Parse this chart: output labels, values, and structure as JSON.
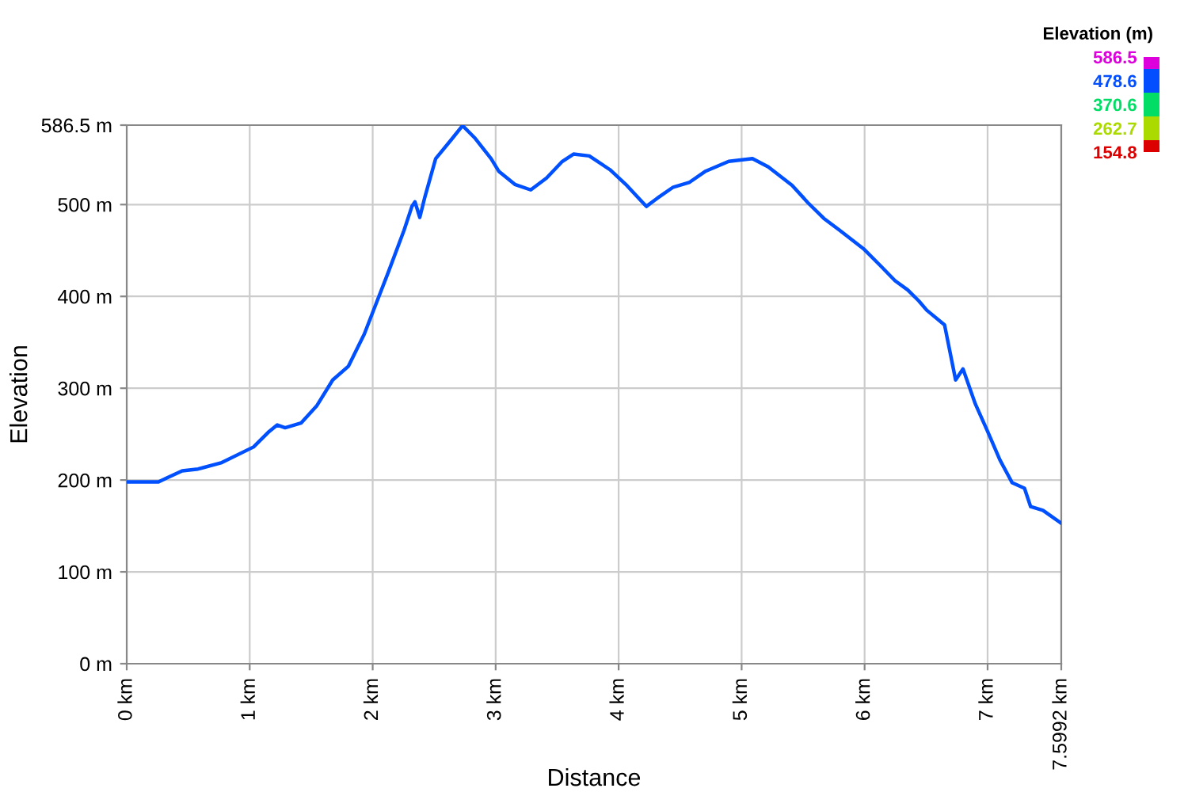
{
  "chart_data": {
    "type": "line",
    "xlabel": "Distance",
    "ylabel": "Elevation",
    "x": [
      0,
      0.258,
      0.322,
      0.451,
      0.58,
      0.773,
      1.031,
      1.159,
      1.224,
      1.288,
      1.417,
      1.546,
      1.675,
      1.803,
      1.932,
      2.01,
      2.126,
      2.255,
      2.319,
      2.344,
      2.383,
      2.422,
      2.512,
      2.641,
      2.731,
      2.834,
      2.963,
      3.027,
      3.156,
      3.285,
      3.414,
      3.542,
      3.633,
      3.761,
      3.929,
      4.058,
      4.225,
      4.315,
      4.444,
      4.573,
      4.702,
      4.895,
      5.088,
      5.217,
      5.41,
      5.539,
      5.668,
      5.797,
      5.99,
      6.132,
      6.248,
      6.351,
      6.441,
      6.505,
      6.65,
      6.74,
      6.8,
      6.9,
      7.0,
      7.1,
      7.2,
      7.3,
      7.35,
      7.45,
      7.599
    ],
    "values": [
      198,
      198,
      202,
      210,
      212,
      219,
      236,
      253,
      260,
      257,
      262,
      281,
      309,
      324,
      359,
      386,
      426,
      472,
      498,
      503,
      486,
      507,
      550,
      571,
      586,
      572,
      550,
      536,
      522,
      516,
      529,
      547,
      555,
      553,
      538,
      522,
      498,
      507,
      519,
      524,
      536,
      547,
      550,
      541,
      521,
      502,
      485,
      472,
      452,
      433,
      417,
      407,
      395,
      385,
      369,
      309,
      321,
      283,
      253,
      222,
      197,
      191,
      171,
      167,
      153
    ],
    "color": "#0050ff",
    "xlim": [
      0,
      7.5992
    ],
    "xticks": [
      {
        "value": 0,
        "label": "0 km"
      },
      {
        "value": 1,
        "label": "1 km"
      },
      {
        "value": 2,
        "label": "2 km"
      },
      {
        "value": 3,
        "label": "3 km"
      },
      {
        "value": 4,
        "label": "4 km"
      },
      {
        "value": 5,
        "label": "5 km"
      },
      {
        "value": 6,
        "label": "6 km"
      },
      {
        "value": 7,
        "label": "7 km"
      },
      {
        "value": 7.5992,
        "label": "7.5992 km"
      }
    ],
    "ylim": [
      0,
      586.5
    ],
    "yticks": [
      {
        "value": 0,
        "label": "0 m"
      },
      {
        "value": 100,
        "label": "100 m"
      },
      {
        "value": 200,
        "label": "200 m"
      },
      {
        "value": 300,
        "label": "300 m"
      },
      {
        "value": 400,
        "label": "400 m"
      },
      {
        "value": 500,
        "label": "500 m"
      },
      {
        "value": 586.5,
        "label": "586.5 m"
      }
    ],
    "grid": true,
    "clabel": "Elevation (m)",
    "clim": [
      154.8,
      586.5
    ],
    "cticks": [
      154.8,
      262.7,
      370.6,
      478.6,
      586.5
    ]
  }
}
